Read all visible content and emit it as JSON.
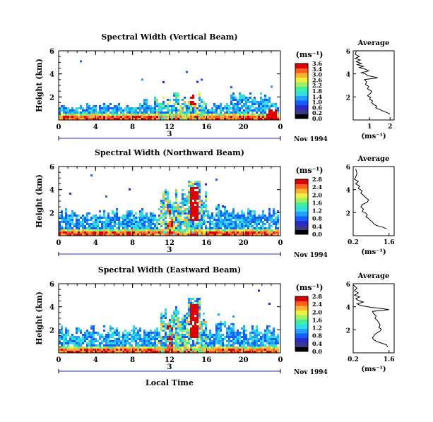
{
  "panels": [
    {
      "title": "Spectral Width (Vertical Beam)",
      "seed": 11,
      "cb_ticks": [
        "3.6",
        "3.4",
        "3.0",
        "2.6",
        "2.2",
        "1.8",
        "1.4",
        "1.0",
        "0.6",
        "0.2",
        "0.0"
      ],
      "avg_xlabel": "(ms⁻¹)",
      "avg_xticks": [
        {
          "v": 1.0,
          "l": "1"
        },
        {
          "v": 2.0,
          "l": "2"
        }
      ],
      "avg_xlim": [
        0.2,
        2.2
      ],
      "profile": [
        [
          2.0,
          0.5
        ],
        [
          1.9,
          0.6
        ],
        [
          1.7,
          0.75
        ],
        [
          1.5,
          0.9
        ],
        [
          1.3,
          1.05
        ],
        [
          1.35,
          1.2
        ],
        [
          1.2,
          1.35
        ],
        [
          1.1,
          1.5
        ],
        [
          1.15,
          1.65
        ],
        [
          1.0,
          1.8
        ],
        [
          1.05,
          1.95
        ],
        [
          0.9,
          2.1
        ],
        [
          1.05,
          2.3
        ],
        [
          1.1,
          2.5
        ],
        [
          0.9,
          2.7
        ],
        [
          0.95,
          2.9
        ],
        [
          0.8,
          3.1
        ],
        [
          0.85,
          3.3
        ],
        [
          0.75,
          3.5
        ],
        [
          1.4,
          3.65
        ],
        [
          1.2,
          3.75
        ],
        [
          0.9,
          3.85
        ],
        [
          0.8,
          4.0
        ],
        [
          0.6,
          4.1
        ],
        [
          0.95,
          4.25
        ],
        [
          0.8,
          4.4
        ],
        [
          0.5,
          4.55
        ],
        [
          0.7,
          4.65
        ],
        [
          0.4,
          4.8
        ],
        [
          0.6,
          4.9
        ],
        [
          0.35,
          5.05
        ],
        [
          0.55,
          5.2
        ],
        [
          0.3,
          5.35
        ],
        [
          0.5,
          5.5
        ],
        [
          0.3,
          5.7
        ],
        [
          0.35,
          5.95
        ]
      ]
    },
    {
      "title": "Spectral Width (Northward Beam)",
      "seed": 23,
      "cb_ticks": [
        "2.8",
        "2.4",
        "2.0",
        "1.6",
        "1.2",
        "0.8",
        "0.4",
        "0.0"
      ],
      "avg_xlabel": "(ms⁻¹)",
      "avg_xticks": [
        {
          "v": 0.2,
          "l": "0.2"
        },
        {
          "v": 1.6,
          "l": "1.6"
        }
      ],
      "avg_xlim": [
        0.2,
        1.8
      ],
      "profile": [
        [
          1.5,
          0.6
        ],
        [
          1.35,
          0.75
        ],
        [
          1.1,
          0.9
        ],
        [
          1.0,
          1.05
        ],
        [
          0.95,
          1.2
        ],
        [
          0.85,
          1.35
        ],
        [
          0.8,
          1.5
        ],
        [
          0.7,
          1.65
        ],
        [
          0.75,
          1.8
        ],
        [
          0.7,
          1.95
        ],
        [
          0.55,
          2.1
        ],
        [
          0.6,
          2.3
        ],
        [
          0.5,
          2.5
        ],
        [
          0.55,
          2.7
        ],
        [
          0.75,
          2.9
        ],
        [
          0.8,
          3.1
        ],
        [
          0.7,
          3.3
        ],
        [
          0.6,
          3.5
        ],
        [
          0.5,
          3.7
        ],
        [
          0.55,
          3.9
        ],
        [
          0.4,
          4.1
        ],
        [
          0.45,
          4.3
        ],
        [
          0.3,
          4.5
        ],
        [
          0.4,
          4.7
        ],
        [
          0.25,
          4.9
        ],
        [
          0.3,
          5.1
        ],
        [
          0.35,
          5.4
        ],
        [
          0.3,
          5.8
        ]
      ]
    },
    {
      "title": "Spectral Width (Eastward Beam)",
      "seed": 37,
      "cb_ticks": [
        "2.8",
        "2.4",
        "2.0",
        "1.6",
        "1.2",
        "0.8",
        "0.4",
        "0.0"
      ],
      "avg_xlabel": "(ms⁻¹)",
      "avg_xticks": [
        {
          "v": 0.2,
          "l": "0.2"
        },
        {
          "v": 1.6,
          "l": "1.6"
        }
      ],
      "avg_xlim": [
        0.2,
        1.8
      ],
      "profile": [
        [
          1.55,
          0.5
        ],
        [
          1.5,
          0.7
        ],
        [
          1.3,
          0.85
        ],
        [
          1.1,
          1.0
        ],
        [
          1.0,
          1.15
        ],
        [
          0.95,
          1.3
        ],
        [
          1.0,
          1.45
        ],
        [
          1.05,
          1.6
        ],
        [
          1.15,
          1.75
        ],
        [
          1.25,
          1.9
        ],
        [
          1.3,
          2.05
        ],
        [
          1.2,
          2.2
        ],
        [
          1.25,
          2.4
        ],
        [
          1.2,
          2.6
        ],
        [
          1.15,
          2.8
        ],
        [
          1.05,
          3.0
        ],
        [
          1.1,
          3.2
        ],
        [
          1.0,
          3.4
        ],
        [
          0.95,
          3.6
        ],
        [
          1.6,
          3.75
        ],
        [
          1.3,
          3.85
        ],
        [
          0.9,
          3.95
        ],
        [
          0.5,
          4.1
        ],
        [
          0.35,
          4.25
        ],
        [
          0.6,
          4.4
        ],
        [
          0.4,
          4.55
        ],
        [
          0.3,
          4.7
        ],
        [
          0.45,
          4.85
        ],
        [
          0.25,
          5.0
        ],
        [
          0.4,
          5.2
        ],
        [
          0.25,
          5.4
        ],
        [
          0.35,
          5.6
        ],
        [
          0.2,
          5.9
        ]
      ]
    }
  ],
  "shared": {
    "ylabel": "Height (km)",
    "unit_label": "(ms⁻¹)",
    "avg_title": "Average",
    "date_label": "Nov 1994",
    "day_label": "3",
    "xlabel": "Local Time",
    "x_ticks": [
      "0",
      "4",
      "8",
      "12",
      "16",
      "20",
      "0"
    ],
    "y_ticks": [
      "6",
      "4",
      "2"
    ],
    "avg_y_ticks": [
      "6",
      "4",
      "2"
    ],
    "colors": [
      "#000000",
      "#3a3a8a",
      "#2a2ad0",
      "#1060ff",
      "#20a0ff",
      "#30e0e0",
      "#40f0a0",
      "#a0f060",
      "#f0f040",
      "#ffb030",
      "#ff6020",
      "#e00000"
    ]
  },
  "chart_data": [
    {
      "type": "heatmap",
      "title": "Spectral Width (Vertical Beam)",
      "xlabel": "",
      "ylabel": "Height (km)",
      "x_ticks": [
        "0",
        "4",
        "8",
        "12",
        "16",
        "20",
        "0"
      ],
      "ylim": [
        0,
        6
      ],
      "colorbar_label": "(ms⁻¹)",
      "colorbar_ticks": [
        3.6,
        3.4,
        3.0,
        2.6,
        2.2,
        1.8,
        1.4,
        1.0,
        0.6,
        0.2,
        0.0
      ]
    },
    {
      "type": "line",
      "title": "Average",
      "ylim": [
        0,
        6
      ],
      "xlabel": "(ms⁻¹)",
      "x_ticks": [
        1,
        2
      ]
    },
    {
      "type": "heatmap",
      "title": "Spectral Width (Northward Beam)",
      "xlabel": "",
      "ylabel": "Height (km)",
      "x_ticks": [
        "0",
        "4",
        "8",
        "12",
        "16",
        "20",
        "0"
      ],
      "ylim": [
        0,
        6
      ],
      "colorbar_label": "(ms⁻¹)",
      "colorbar_ticks": [
        2.8,
        2.4,
        2.0,
        1.6,
        1.2,
        0.8,
        0.4,
        0.0
      ]
    },
    {
      "type": "line",
      "title": "Average",
      "ylim": [
        0,
        6
      ],
      "xlabel": "(ms⁻¹)",
      "x_ticks": [
        0.2,
        1.6
      ]
    },
    {
      "type": "heatmap",
      "title": "Spectral Width (Eastward Beam)",
      "xlabel": "Local Time",
      "ylabel": "Height (km)",
      "x_ticks": [
        "0",
        "4",
        "8",
        "12",
        "16",
        "20",
        "0"
      ],
      "ylim": [
        0,
        6
      ],
      "colorbar_label": "(ms⁻¹)",
      "colorbar_ticks": [
        2.8,
        2.4,
        2.0,
        1.6,
        1.2,
        0.8,
        0.4,
        0.0
      ]
    },
    {
      "type": "line",
      "title": "Average",
      "ylim": [
        0,
        6
      ],
      "xlabel": "(ms⁻¹)",
      "x_ticks": [
        0.2,
        1.6
      ]
    }
  ]
}
